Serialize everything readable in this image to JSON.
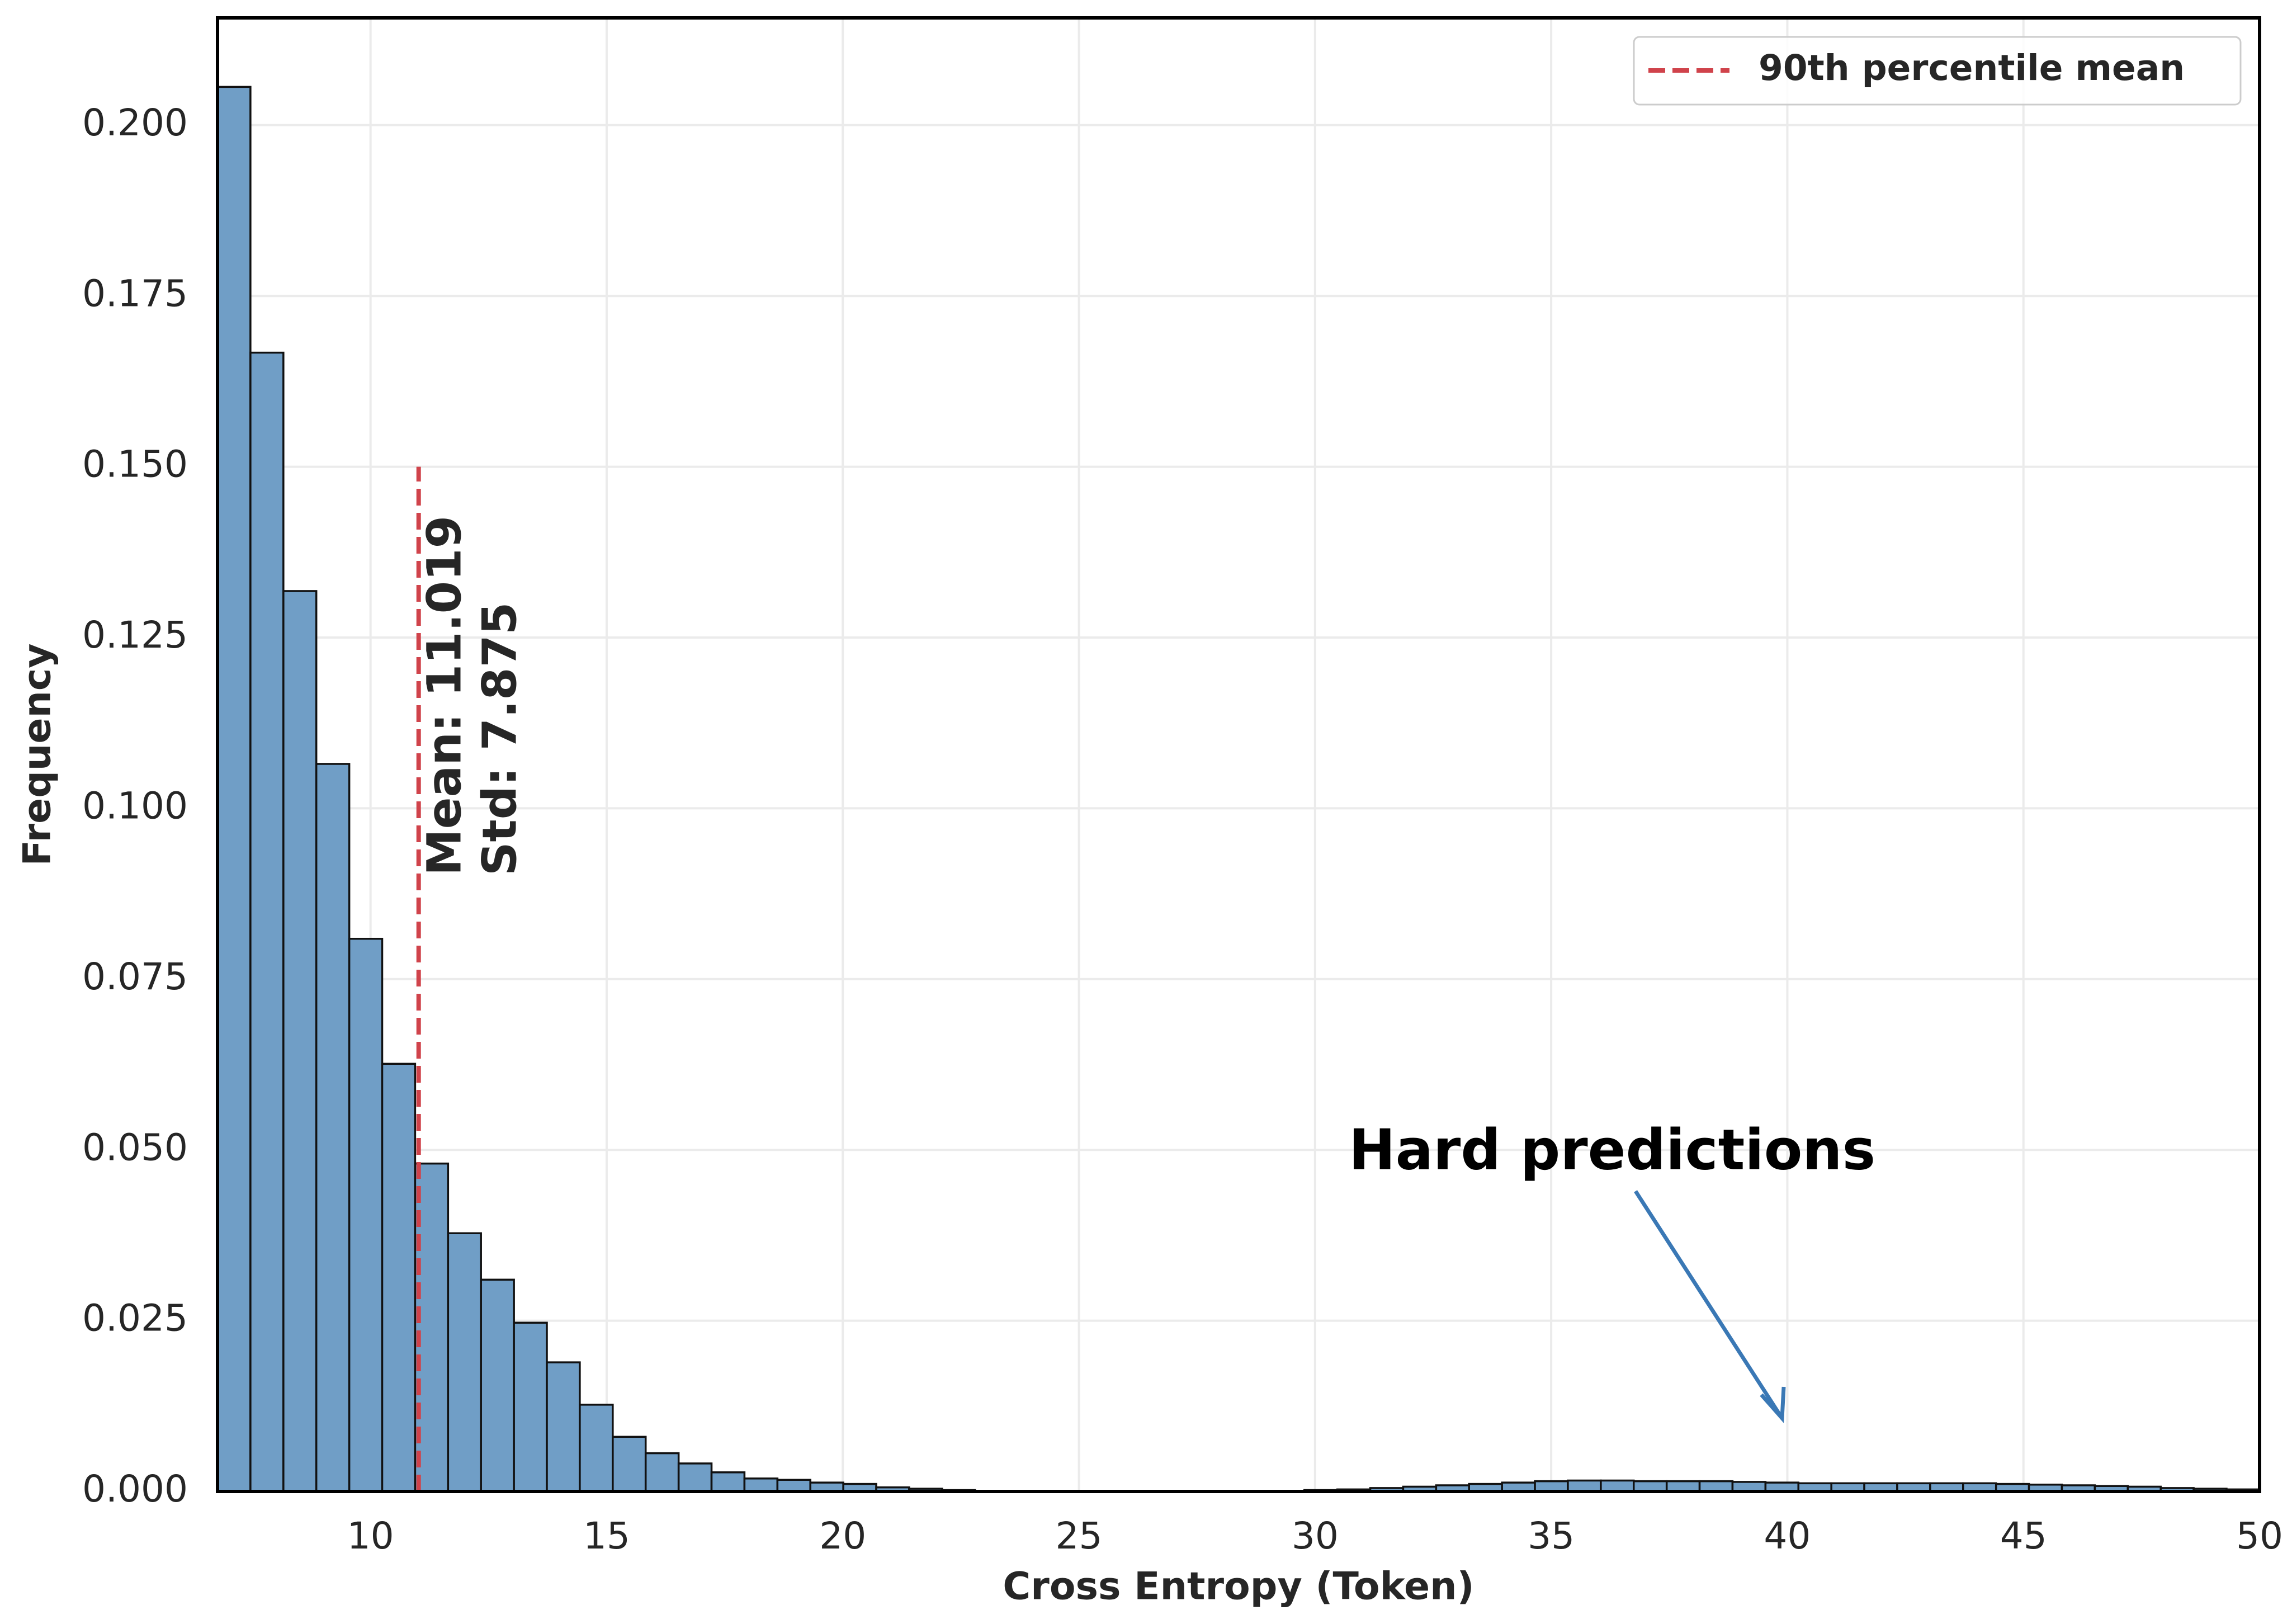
{
  "chart_data": {
    "type": "histogram",
    "x_label": "Cross Entropy (Token)",
    "y_label": "Frequency",
    "bins": [
      6.76,
      7.457,
      8.155,
      8.852,
      9.55,
      10.247,
      10.944,
      11.642,
      12.339,
      13.037,
      13.734,
      14.431,
      15.129,
      15.826,
      16.524,
      17.221,
      17.918,
      18.616,
      19.313,
      20.011,
      20.708,
      21.405,
      22.103,
      22.8,
      23.498,
      24.195,
      24.892,
      25.59,
      26.287,
      26.985,
      27.682,
      28.379,
      29.077,
      29.774,
      30.472,
      31.169,
      31.866,
      32.564,
      33.261,
      33.959,
      34.656,
      35.353,
      36.051,
      36.748,
      37.446,
      38.143,
      38.84,
      39.538,
      40.235,
      40.933,
      41.63,
      42.327,
      43.025,
      43.722,
      44.42,
      45.117,
      45.814,
      46.512,
      47.209,
      47.907,
      48.604,
      49.301,
      50
    ],
    "values": [
      0.2056,
      0.1667,
      0.1318,
      0.1065,
      0.0809,
      0.0626,
      0.048,
      0.0378,
      0.031,
      0.0247,
      0.0189,
      0.0127,
      0.008,
      0.0056,
      0.0041,
      0.0028,
      0.0019,
      0.0017,
      0.0013,
      0.0011,
      0.0006,
      0.0004,
      0.0002,
      0.0001,
      0.0001,
      0.0001,
      0,
      0,
      0,
      0,
      0,
      0.0001,
      0.0001,
      0.0002,
      0.0003,
      0.0005,
      0.0007,
      0.0009,
      0.0011,
      0.0013,
      0.0015,
      0.0016,
      0.0016,
      0.0015,
      0.0015,
      0.0015,
      0.0014,
      0.0013,
      0.0012,
      0.0012,
      0.0012,
      0.0012,
      0.0012,
      0.0012,
      0.0011,
      0.001,
      0.0009,
      0.0008,
      0.0007,
      0.0005,
      0.0004,
      0.0003
    ],
    "color": "#709ec6",
    "edge_color": "#111111",
    "xlim": [
      6.76,
      50
    ],
    "ylim": [
      0,
      0.2157
    ],
    "xticks": [
      10,
      15,
      20,
      25,
      30,
      35,
      40,
      45,
      50
    ],
    "yticks": [
      {
        "value": 0,
        "label": "0.000"
      },
      0.025,
      {
        "value": 0.05,
        "label": "0.050"
      },
      0.075,
      {
        "value": 0.1,
        "label": "0.100"
      },
      0.125,
      {
        "value": 0.15,
        "label": "0.150"
      },
      0.175,
      {
        "value": 0.2,
        "label": "0.200"
      }
    ],
    "grid": true,
    "vline": {
      "x": 11.019,
      "ymax": 0.15,
      "color": "#d0434b",
      "name": "90th percentile mean"
    },
    "stat_texts": [
      "Mean: 11.019",
      "Std: 7.875"
    ],
    "annotation": {
      "text": "Hard predictions",
      "color": "#3a78b5"
    },
    "legend_position": "upper right"
  }
}
